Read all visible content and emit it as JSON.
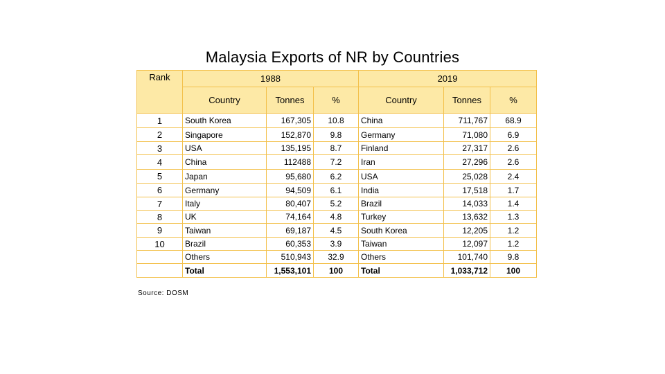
{
  "title": "Malaysia Exports of NR by Countries",
  "source": "Source: DOSM",
  "headers": {
    "year1": "1988",
    "year2": "2019",
    "rank": "Rank",
    "country": "Country",
    "tonnes": "Tonnes",
    "pct": "%"
  },
  "rows": [
    {
      "rank": "1",
      "c1": "South Korea",
      "t1": "167,305",
      "p1": "10.8",
      "c2": "China",
      "t2": "711,767",
      "p2": "68.9"
    },
    {
      "rank": "2",
      "c1": "Singapore",
      "t1": "152,870",
      "p1": "9.8",
      "c2": "Germany",
      "t2": "71,080",
      "p2": "6.9"
    },
    {
      "rank": "3",
      "c1": "USA",
      "t1": "135,195",
      "p1": "8.7",
      "c2": "Finland",
      "t2": "27,317",
      "p2": "2.6"
    },
    {
      "rank": "4",
      "c1": "China",
      "t1": "112488",
      "p1": "7.2",
      "c2": "Iran",
      "t2": "27,296",
      "p2": "2.6"
    },
    {
      "rank": "5",
      "c1": "Japan",
      "t1": "95,680",
      "p1": "6.2",
      "c2": "USA",
      "t2": "25,028",
      "p2": "2.4"
    },
    {
      "rank": "6",
      "c1": "Germany",
      "t1": "94,509",
      "p1": "6.1",
      "c2": "India",
      "t2": "17,518",
      "p2": "1.7"
    },
    {
      "rank": "7",
      "c1": "Italy",
      "t1": "80,407",
      "p1": "5.2",
      "c2": "Brazil",
      "t2": "14,033",
      "p2": "1.4"
    },
    {
      "rank": "8",
      "c1": "UK",
      "t1": "74,164",
      "p1": "4.8",
      "c2": "Turkey",
      "t2": "13,632",
      "p2": "1.3"
    },
    {
      "rank": "9",
      "c1": "Taiwan",
      "t1": "69,187",
      "p1": "4.5",
      "c2": "South Korea",
      "t2": "12,205",
      "p2": "1.2"
    },
    {
      "rank": "10",
      "c1": "Brazil",
      "t1": "60,353",
      "p1": "3.9",
      "c2": "Taiwan",
      "t2": "12,097",
      "p2": "1.2"
    }
  ],
  "others": {
    "c1": "Others",
    "t1": "510,943",
    "p1": "32.9",
    "c2": "Others",
    "t2": "101,740",
    "p2": "9.8"
  },
  "total": {
    "c1": "Total",
    "t1": "1,553,101",
    "p1": "100",
    "c2": "Total",
    "t2": "1,033,712",
    "p2": "100"
  }
}
